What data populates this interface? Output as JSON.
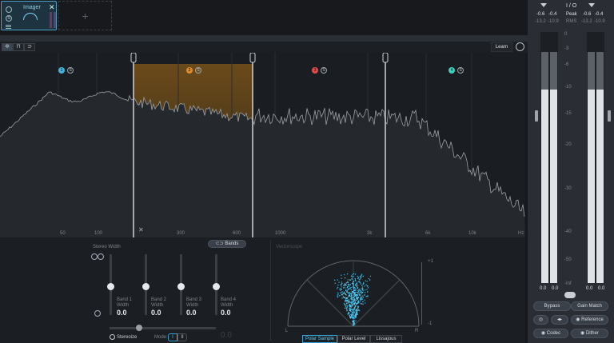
{
  "module": {
    "title": "Imager",
    "power_icon": "power-icon",
    "solo_label": "S",
    "close_label": "✕"
  },
  "add_slot": {
    "label": "+"
  },
  "toolbar": {
    "tools": [
      "pointer-icon",
      "band-split-icon",
      "curve-icon"
    ],
    "learn_label": "Learn"
  },
  "spectrum": {
    "bands": [
      {
        "index": "1",
        "solo": "S",
        "color": "#3fb5d9"
      },
      {
        "index": "2",
        "solo": "S",
        "color": "#e08a2a"
      },
      {
        "index": "3",
        "solo": "S",
        "color": "#e34b4b"
      },
      {
        "index": "4",
        "solo": "S",
        "color": "#3fd0c0"
      }
    ],
    "freq_labels": [
      "50",
      "100",
      "300",
      "600",
      "1000",
      "3k",
      "6k",
      "10k",
      "Hz"
    ],
    "delete_label": "✕"
  },
  "width_panel": {
    "title": "Stereo Width",
    "bands_button": "Bands",
    "bands": [
      {
        "name": "Band 1",
        "width_label": "Width",
        "value": "0.0"
      },
      {
        "name": "Band 2",
        "width_label": "Width",
        "value": "0.0"
      },
      {
        "name": "Band 3",
        "width_label": "Width",
        "value": "0.0"
      },
      {
        "name": "Band 4",
        "width_label": "Width",
        "value": "0.0"
      }
    ],
    "stereoize_label": "Stereoize",
    "mode_label": "Mode:",
    "mode_options": [
      "I",
      "II"
    ],
    "stereoize_value": "0.0"
  },
  "vectorscope": {
    "title": "Vectorscope",
    "scale_top": "+1",
    "scale_bottom": "-1",
    "left_label": "L",
    "right_label": "R",
    "tabs": [
      "Polar Sample",
      "Polar Level",
      "Lissajous"
    ],
    "active_tab": "Polar Sample"
  },
  "meters": {
    "io_label": "I / O",
    "peak_label": "Peak",
    "rms_label": "RMS",
    "in_peak": [
      "-0.6",
      "-0.4"
    ],
    "in_rms": [
      "-13.2",
      "-10.9"
    ],
    "out_peak": [
      "-0.6",
      "-0.4"
    ],
    "out_rms": [
      "-13.2",
      "-10.9"
    ],
    "scale": [
      "0",
      "-3",
      "-6",
      "-10",
      "-15",
      "-20",
      "-30",
      "-40",
      "-50",
      "-Inf"
    ],
    "in_values": [
      "0.0",
      "0.0"
    ],
    "out_values": [
      "0.0",
      "0.0"
    ],
    "levels": {
      "in_l": 0.77,
      "in_r": 0.77,
      "out_l": 0.77,
      "out_r": 0.77
    }
  },
  "actions": {
    "bypass": "Bypass",
    "gain_match": "Gain Match",
    "reference": "Reference",
    "codec": "Codec",
    "dither": "Dither"
  }
}
